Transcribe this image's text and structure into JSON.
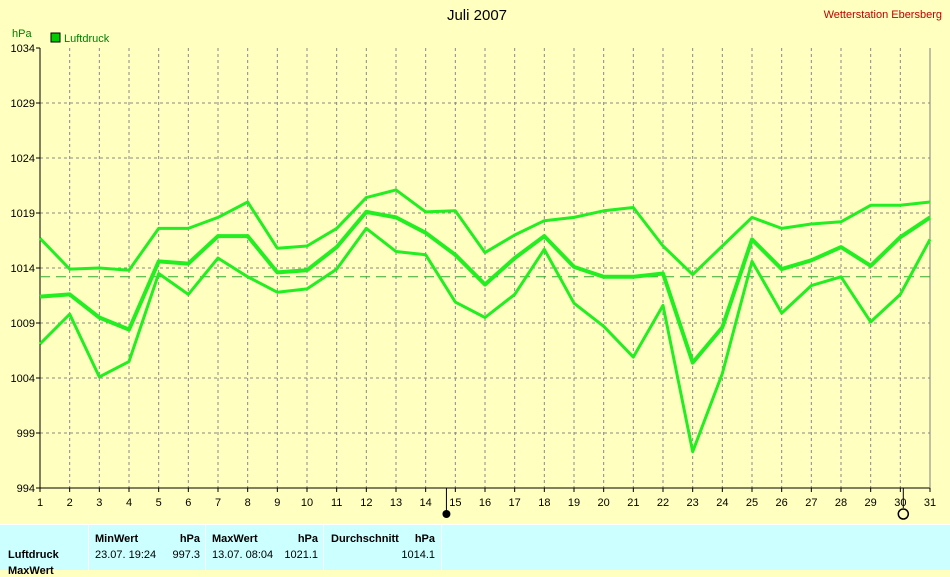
{
  "header": {
    "title": "Juli 2007",
    "station": "Wetterstation Ebersberg"
  },
  "legend": {
    "label": "Luftdruck",
    "color": "#00CC00"
  },
  "colors": {
    "background": "#FFFFC0",
    "line": "#22EE22",
    "grid": "#888888",
    "mean_line": "#33AA33",
    "panel": "#CCFFFF"
  },
  "chart_data": {
    "type": "line",
    "title": "Juli 2007",
    "ylabel": "hPa",
    "xlabel": "",
    "ylim": [
      994,
      1034
    ],
    "yticks": [
      994,
      999,
      1004,
      1009,
      1014,
      1019,
      1024,
      1029,
      1034
    ],
    "x": [
      1,
      2,
      3,
      4,
      5,
      6,
      7,
      8,
      9,
      10,
      11,
      12,
      13,
      14,
      15,
      16,
      17,
      18,
      19,
      20,
      21,
      22,
      23,
      24,
      25,
      26,
      27,
      28,
      29,
      30,
      31
    ],
    "grid": true,
    "legend_position": "top-left",
    "reference_line": 1013.2,
    "today_marker_day": 14.7,
    "cursor_marker_day": 30.1,
    "series": [
      {
        "name": "Luftdruck",
        "role": "max",
        "values": [
          1016.7,
          1013.9,
          1014.0,
          1013.8,
          1017.6,
          1017.6,
          1018.6,
          1020.0,
          1015.8,
          1016.0,
          1017.6,
          1020.4,
          1021.1,
          1019.1,
          1019.2,
          1015.4,
          1017.0,
          1018.3,
          1018.6,
          1019.2,
          1019.5,
          1016.0,
          1013.4,
          1016.0,
          1018.6,
          1017.6,
          1018.0,
          1018.2,
          1019.7,
          1019.7,
          1020.0
        ]
      },
      {
        "name": "Luftdruck",
        "role": "mean",
        "values": [
          1011.4,
          1011.6,
          1009.5,
          1008.4,
          1014.6,
          1014.4,
          1016.9,
          1016.9,
          1013.6,
          1013.8,
          1015.9,
          1019.1,
          1018.6,
          1017.2,
          1015.2,
          1012.5,
          1014.9,
          1016.9,
          1014.1,
          1013.2,
          1013.2,
          1013.5,
          1005.4,
          1008.6,
          1016.6,
          1013.9,
          1014.7,
          1015.9,
          1014.2,
          1016.8,
          1018.6
        ]
      },
      {
        "name": "Luftdruck",
        "role": "min",
        "values": [
          1007.1,
          1009.8,
          1004.1,
          1005.5,
          1013.5,
          1011.6,
          1014.9,
          1013.2,
          1011.8,
          1012.1,
          1013.9,
          1017.6,
          1015.5,
          1015.2,
          1010.9,
          1009.5,
          1011.6,
          1015.7,
          1010.8,
          1008.7,
          1005.9,
          1010.6,
          997.3,
          1004.4,
          1014.6,
          1009.9,
          1012.4,
          1013.2,
          1009.1,
          1011.6,
          1016.6
        ]
      }
    ]
  },
  "stats": {
    "row_label": "Luftdruck",
    "row_label_2": "MaxWert",
    "min": {
      "header": "MinWert",
      "unit": "hPa",
      "datetime": "23.07.  19:24",
      "value": "997.3"
    },
    "max": {
      "header": "MaxWert",
      "unit": "hPa",
      "datetime": "13.07.  08:04",
      "value": "1021.1"
    },
    "avg": {
      "header": "Durchschnitt",
      "unit": "hPa",
      "value": "1014.1"
    }
  }
}
